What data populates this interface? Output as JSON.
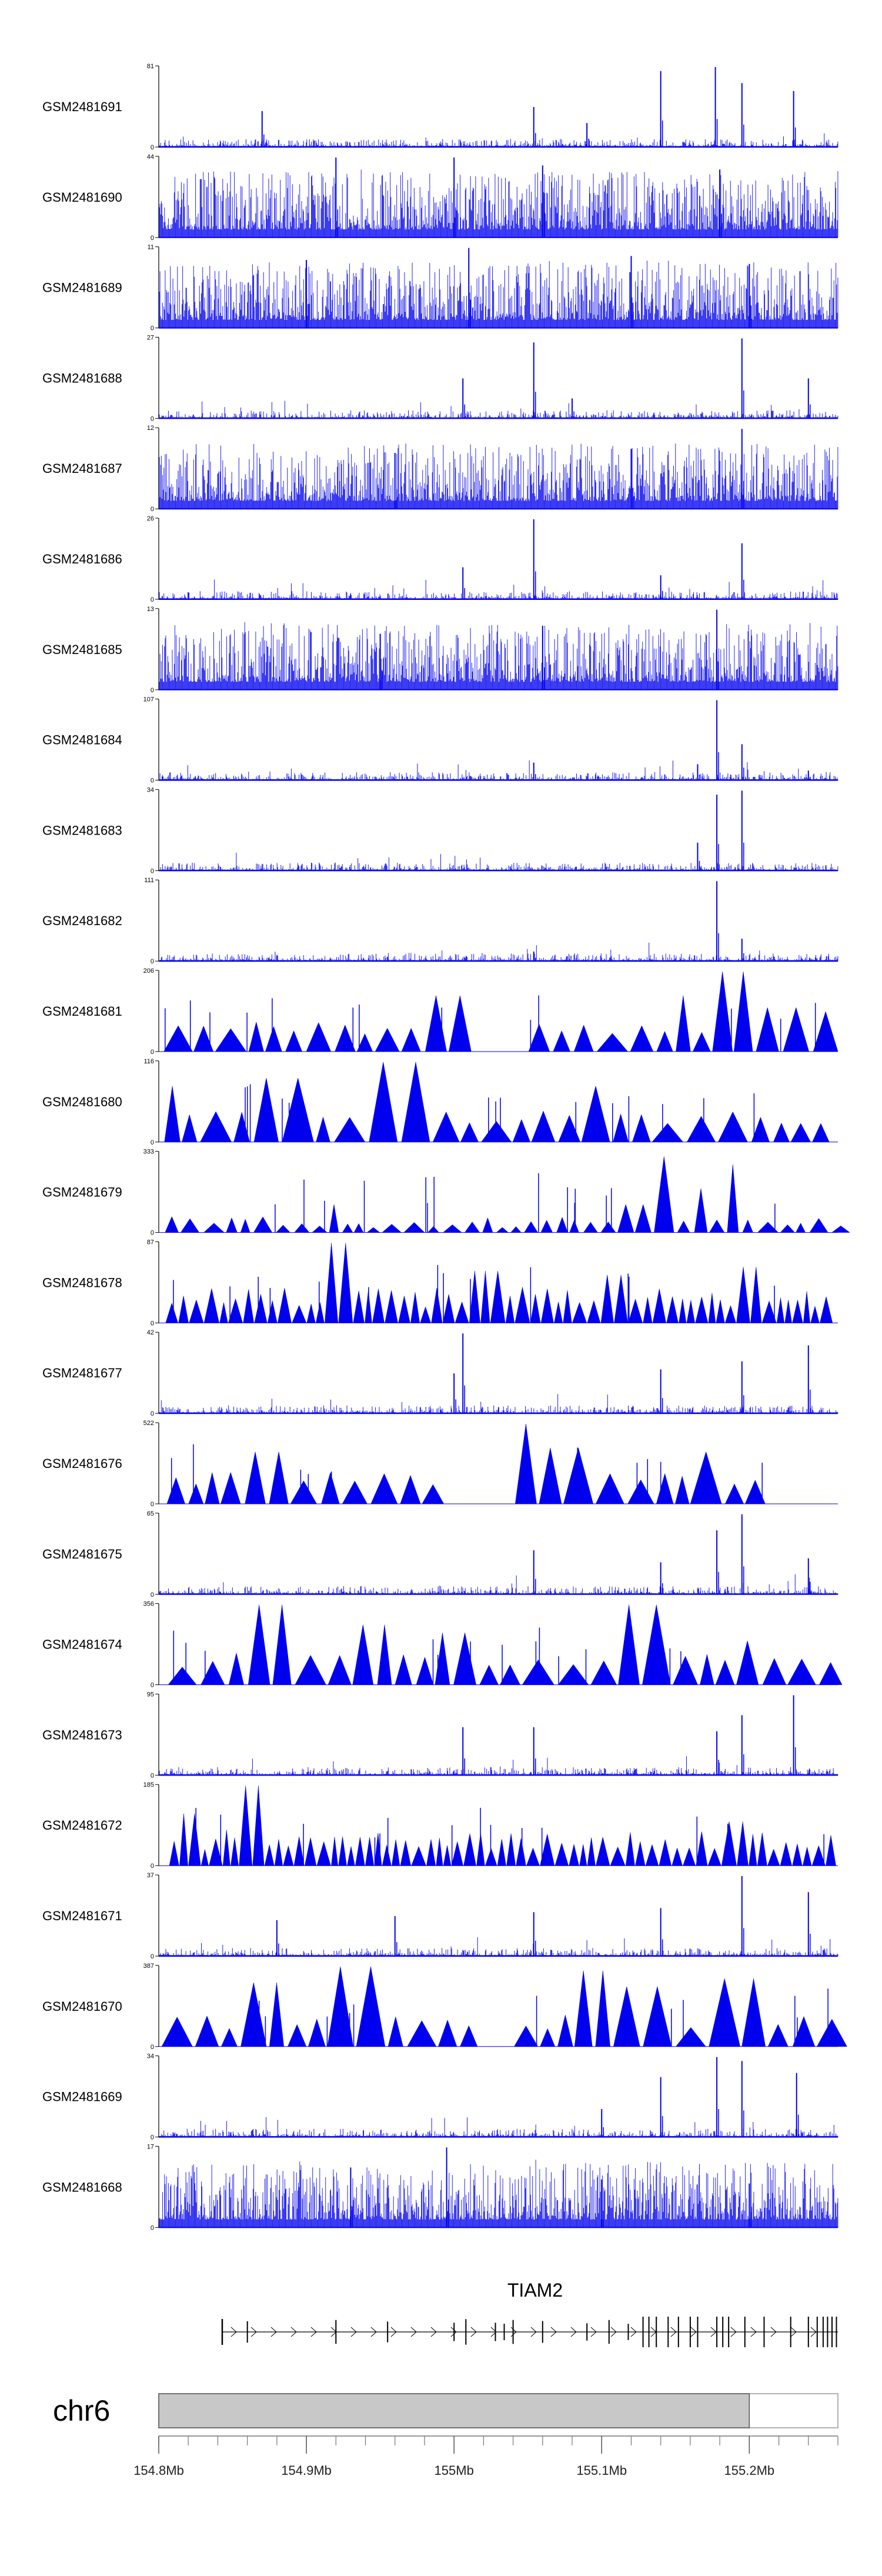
{
  "chart_data": {
    "type": "genome-browser-tracks",
    "title": "",
    "chromosome": "chr6",
    "x_range_mb": [
      154.8,
      155.26
    ],
    "highlight_range_mb": [
      154.8,
      155.2
    ],
    "x_ticks": [
      {
        "value": 154.8,
        "label": "154.8Mb"
      },
      {
        "value": 154.9,
        "label": "154.9Mb"
      },
      {
        "value": 155.0,
        "label": "155Mb"
      },
      {
        "value": 155.1,
        "label": "155.1Mb"
      },
      {
        "value": 155.2,
        "label": "155.2Mb"
      }
    ],
    "gene": {
      "name": "TIAM2",
      "start_mb": 154.843,
      "end_mb": 155.26,
      "strand": "+"
    },
    "colors": {
      "signal": "#0000ee",
      "axis": "#000000",
      "ideogram": "#c8c8c8"
    },
    "tracks": [
      {
        "name": "GSM2481691",
        "ymax": 81,
        "ymin": 0,
        "style": "sparse",
        "peaks": [
          [
            155.054,
            0.5
          ],
          [
            155.14,
            0.95
          ],
          [
            155.177,
            1.0
          ],
          [
            155.195,
            0.8
          ],
          [
            155.23,
            0.7
          ],
          [
            154.87,
            0.45
          ],
          [
            155.09,
            0.3
          ]
        ]
      },
      {
        "name": "GSM2481690",
        "ymax": 44,
        "ymin": 0,
        "style": "dense",
        "peaks": [
          [
            155.0,
            1.0
          ],
          [
            154.92,
            1.0
          ],
          [
            155.06,
            0.9
          ],
          [
            155.18,
            0.85
          ]
        ]
      },
      {
        "name": "GSM2481689",
        "ymax": 11,
        "ymin": 0,
        "style": "dense",
        "peaks": [
          [
            155.01,
            1.0
          ],
          [
            155.12,
            0.9
          ],
          [
            154.9,
            0.85
          ],
          [
            155.2,
            0.8
          ]
        ]
      },
      {
        "name": "GSM2481688",
        "ymax": 27,
        "ymin": 0,
        "style": "sparse",
        "peaks": [
          [
            155.054,
            0.95
          ],
          [
            155.006,
            0.5
          ],
          [
            155.195,
            1.0
          ],
          [
            155.24,
            0.5
          ],
          [
            155.08,
            0.25
          ]
        ]
      },
      {
        "name": "GSM2481687",
        "ymax": 12,
        "ymin": 0,
        "style": "dense",
        "peaks": [
          [
            155.195,
            1.0
          ],
          [
            155.12,
            0.75
          ],
          [
            154.96,
            0.7
          ]
        ]
      },
      {
        "name": "GSM2481686",
        "ymax": 26,
        "ymin": 0,
        "style": "sparse",
        "peaks": [
          [
            155.054,
            1.0
          ],
          [
            155.195,
            0.7
          ],
          [
            155.006,
            0.4
          ],
          [
            155.14,
            0.3
          ]
        ]
      },
      {
        "name": "GSM2481685",
        "ymax": 13,
        "ymin": 0,
        "style": "dense",
        "peaks": [
          [
            155.178,
            1.0
          ],
          [
            155.06,
            0.8
          ],
          [
            154.95,
            0.7
          ]
        ]
      },
      {
        "name": "GSM2481684",
        "ymax": 107,
        "ymin": 0,
        "style": "sparse",
        "peaks": [
          [
            155.178,
            1.0
          ],
          [
            155.195,
            0.45
          ],
          [
            155.054,
            0.22
          ],
          [
            155.165,
            0.2
          ],
          [
            155.24,
            0.12
          ]
        ]
      },
      {
        "name": "GSM2481683",
        "ymax": 34,
        "ymin": 0,
        "style": "sparse",
        "peaks": [
          [
            155.178,
            0.95
          ],
          [
            155.195,
            1.0
          ],
          [
            155.165,
            0.35
          ]
        ]
      },
      {
        "name": "GSM2481682",
        "ymax": 111,
        "ymin": 0,
        "style": "sparse",
        "peaks": [
          [
            155.178,
            1.0
          ],
          [
            155.195,
            0.28
          ],
          [
            155.054,
            0.12
          ]
        ]
      },
      {
        "name": "GSM2481681",
        "ymax": 206,
        "ymin": 0,
        "style": "triangles",
        "gaps": [
          [
            155.0,
            155.035
          ],
          [
            155.1,
            155.115
          ]
        ],
        "peaks": [
          [
            155.195,
            1.0
          ],
          [
            154.99,
            0.7
          ],
          [
            155.155,
            0.7
          ],
          [
            155.225,
            0.55
          ],
          [
            155.24,
            0.5
          ]
        ]
      },
      {
        "name": "GSM2481680",
        "ymax": 116,
        "ymin": 0,
        "style": "triangles",
        "gaps": [],
        "peaks": [
          [
            154.965,
            1.0
          ],
          [
            154.88,
            0.8
          ],
          [
            155.1,
            0.7
          ],
          [
            154.8,
            0.7
          ]
        ]
      },
      {
        "name": "GSM2481679",
        "ymax": 333,
        "ymin": 0,
        "style": "triangles-sparse",
        "gaps": [],
        "peaks": [
          [
            155.14,
            0.95
          ],
          [
            155.19,
            0.85
          ],
          [
            155.165,
            0.55
          ],
          [
            155.12,
            0.35
          ],
          [
            154.92,
            0.35
          ]
        ]
      },
      {
        "name": "GSM2481678",
        "ymax": 87,
        "ymin": 0,
        "style": "triangles-dense",
        "gaps": [],
        "peaks": [
          [
            154.92,
            1.0
          ],
          [
            155.02,
            0.65
          ],
          [
            155.11,
            0.6
          ],
          [
            155.2,
            0.7
          ]
        ]
      },
      {
        "name": "GSM2481677",
        "ymax": 42,
        "ymin": 0,
        "style": "sparse",
        "peaks": [
          [
            155.006,
            1.0
          ],
          [
            155.24,
            0.85
          ],
          [
            155.195,
            0.65
          ],
          [
            155.14,
            0.55
          ],
          [
            155.0,
            0.5
          ]
        ]
      },
      {
        "name": "GSM2481676",
        "ymax": 522,
        "ymin": 0,
        "style": "triangles",
        "gaps": [
          [
            154.99,
            155.035
          ],
          [
            155.21,
            155.26
          ]
        ],
        "peaks": [
          [
            155.05,
            1.0
          ],
          [
            155.07,
            0.7
          ],
          [
            155.165,
            0.65
          ],
          [
            154.87,
            0.65
          ]
        ]
      },
      {
        "name": "GSM2481675",
        "ymax": 65,
        "ymin": 0,
        "style": "sparse",
        "peaks": [
          [
            155.195,
            1.0
          ],
          [
            155.178,
            0.8
          ],
          [
            155.054,
            0.55
          ],
          [
            155.24,
            0.45
          ],
          [
            155.14,
            0.4
          ]
        ]
      },
      {
        "name": "GSM2481674",
        "ymax": 356,
        "ymin": 0,
        "style": "triangles",
        "gaps": [],
        "peaks": [
          [
            155.12,
            1.0
          ],
          [
            154.88,
            1.0
          ],
          [
            154.95,
            0.75
          ],
          [
            155.0,
            0.65
          ],
          [
            155.2,
            0.55
          ]
        ]
      },
      {
        "name": "GSM2481673",
        "ymax": 95,
        "ymin": 0,
        "style": "sparse",
        "peaks": [
          [
            155.23,
            1.0
          ],
          [
            155.195,
            0.75
          ],
          [
            155.006,
            0.6
          ],
          [
            155.054,
            0.6
          ],
          [
            155.178,
            0.55
          ]
        ]
      },
      {
        "name": "GSM2481672",
        "ymax": 185,
        "ymin": 0,
        "style": "triangles-dense",
        "gaps": [],
        "peaks": [
          [
            154.865,
            1.0
          ],
          [
            154.82,
            0.65
          ],
          [
            155.015,
            0.4
          ],
          [
            155.195,
            0.55
          ]
        ]
      },
      {
        "name": "GSM2481671",
        "ymax": 37,
        "ymin": 0,
        "style": "sparse",
        "peaks": [
          [
            155.195,
            1.0
          ],
          [
            155.24,
            0.8
          ],
          [
            155.14,
            0.6
          ],
          [
            155.054,
            0.55
          ],
          [
            154.96,
            0.5
          ],
          [
            154.88,
            0.45
          ]
        ]
      },
      {
        "name": "GSM2481670",
        "ymax": 387,
        "ymin": 0,
        "style": "triangles",
        "gaps": [
          [
            155.005,
            155.025
          ]
        ],
        "peaks": [
          [
            154.935,
            1.0
          ],
          [
            155.095,
            0.95
          ],
          [
            155.195,
            0.85
          ],
          [
            155.13,
            0.75
          ],
          [
            154.875,
            0.8
          ]
        ]
      },
      {
        "name": "GSM2481669",
        "ymax": 34,
        "ymin": 0,
        "style": "sparse",
        "peaks": [
          [
            155.178,
            1.0
          ],
          [
            155.195,
            0.95
          ],
          [
            155.232,
            0.8
          ],
          [
            155.14,
            0.75
          ],
          [
            155.1,
            0.35
          ]
        ]
      },
      {
        "name": "GSM2481668",
        "ymax": 17,
        "ymin": 0,
        "style": "dense",
        "peaks": [
          [
            154.995,
            1.0
          ],
          [
            154.93,
            0.75
          ],
          [
            155.1,
            0.6
          ],
          [
            155.2,
            0.55
          ]
        ]
      }
    ]
  }
}
